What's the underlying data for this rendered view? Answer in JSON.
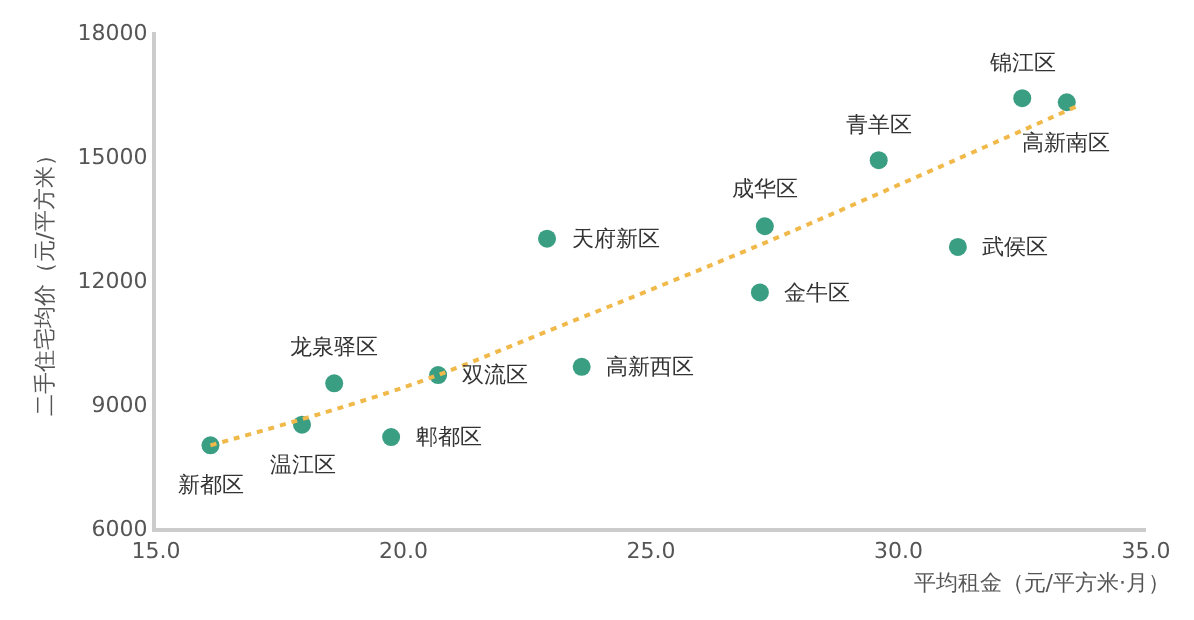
{
  "chart_data": {
    "type": "scatter",
    "xlabel": "平均租金（元/平方米·月）",
    "ylabel": "二手住宅均价（元/平方米）",
    "xlim": [
      15,
      35
    ],
    "xticks": [
      {
        "value": 15,
        "label": "15.0"
      },
      {
        "value": 20,
        "label": "20.0"
      },
      {
        "value": 25,
        "label": "25.0"
      },
      {
        "value": 30,
        "label": "30.0"
      },
      {
        "value": 35,
        "label": "35.0"
      }
    ],
    "ylim": [
      6000,
      18000
    ],
    "yticks": [
      6000,
      9000,
      12000,
      15000,
      18000
    ],
    "grid": false,
    "legend": false,
    "marker": "circle",
    "series": [
      {
        "color": "#3a9e83",
        "x": [
          16.1,
          17.95,
          18.6,
          19.75,
          20.7,
          22.9,
          23.6,
          27.2,
          27.3,
          29.6,
          31.2,
          32.5,
          33.4
        ],
        "values": [
          8000,
          8500,
          9500,
          8200,
          9700,
          13000,
          9900,
          11700,
          13300,
          14900,
          12800,
          16400,
          16300
        ]
      },
      {
        "type": "line",
        "color": "#f0b94a",
        "line_style": "dotted",
        "marker": "none",
        "x": [
          16.1,
          20,
          23.2,
          27.3,
          30,
          33.6
        ],
        "values": [
          8000,
          9400,
          10900,
          12900,
          14300,
          16200
        ]
      }
    ],
    "annotations": [
      {
        "text": "新都区",
        "x": 16.1,
        "y": 8000
      },
      {
        "text": "温江区",
        "x": 17.95,
        "y": 8500
      },
      {
        "text": "龙泉驿区",
        "x": 18.6,
        "y": 9500
      },
      {
        "text": "郫都区",
        "x": 19.75,
        "y": 8200
      },
      {
        "text": "双流区",
        "x": 20.7,
        "y": 9700
      },
      {
        "text": "天府新区",
        "x": 22.9,
        "y": 13000
      },
      {
        "text": "高新西区",
        "x": 23.6,
        "y": 9900
      },
      {
        "text": "金牛区",
        "x": 27.2,
        "y": 11700
      },
      {
        "text": "成华区",
        "x": 27.3,
        "y": 13300
      },
      {
        "text": "青羊区",
        "x": 29.6,
        "y": 14900
      },
      {
        "text": "武侯区",
        "x": 31.2,
        "y": 12800
      },
      {
        "text": "锦江区",
        "x": 32.5,
        "y": 16400
      },
      {
        "text": "高新南区",
        "x": 33.4,
        "y": 16300
      }
    ]
  }
}
